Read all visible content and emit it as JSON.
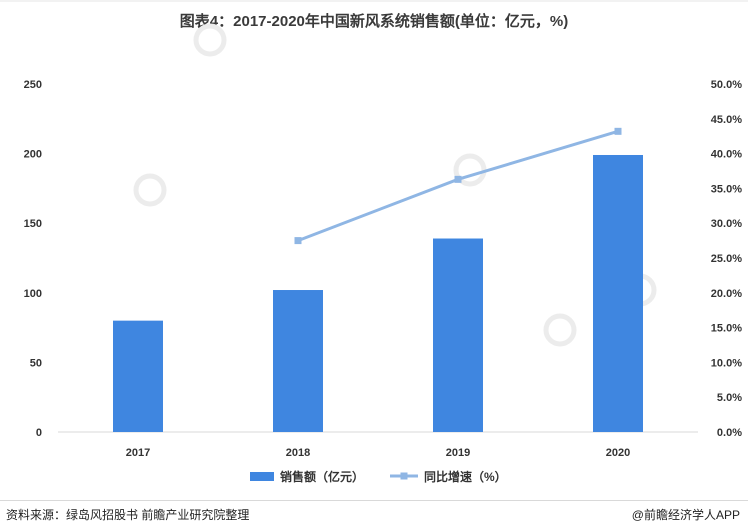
{
  "title": "图表4：2017-2020年中国新风系统销售额(单位：亿元，%)",
  "source": "资料来源：绿岛风招股书 前瞻产业研究院整理",
  "brand": "@前瞻经济学人APP",
  "colors": {
    "bar": "#3f86e0",
    "line": "#8fb6e4",
    "axis": "#d9d9d9",
    "text": "#333333"
  },
  "chart_data": {
    "type": "bar",
    "categories": [
      "2017",
      "2018",
      "2019",
      "2020"
    ],
    "series": [
      {
        "name": "销售额（亿元）",
        "type": "bar",
        "axis": "left",
        "values": [
          80,
          102,
          139,
          199
        ]
      },
      {
        "name": "同比增速（%）",
        "type": "line",
        "axis": "right",
        "values": [
          null,
          27.5,
          36.3,
          43.2
        ]
      }
    ],
    "y_left": {
      "ylim": [
        0,
        250
      ],
      "ticks": [
        "0",
        "50",
        "100",
        "150",
        "200",
        "250"
      ]
    },
    "y_right": {
      "ylim": [
        0,
        50
      ],
      "ticks": [
        "0.0%",
        "5.0%",
        "10.0%",
        "15.0%",
        "20.0%",
        "25.0%",
        "30.0%",
        "35.0%",
        "40.0%",
        "45.0%",
        "50.0%"
      ]
    },
    "grid": false,
    "legend_position": "bottom"
  }
}
